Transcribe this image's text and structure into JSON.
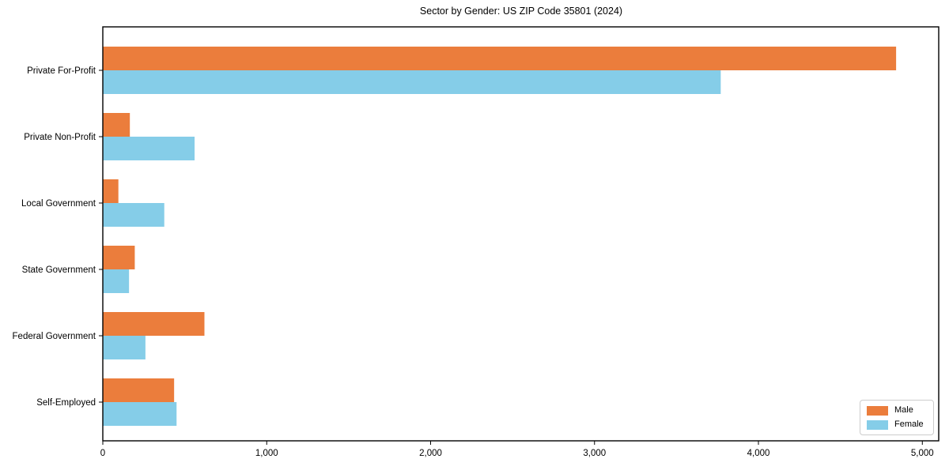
{
  "chart_data": {
    "type": "bar",
    "orientation": "horizontal",
    "title": "Sector by Gender: US ZIP Code 35801 (2024)",
    "categories": [
      "Private For-Profit",
      "Private Non-Profit",
      "Local Government",
      "State Government",
      "Federal Government",
      "Self-Employed"
    ],
    "series": [
      {
        "name": "Male",
        "color": "#EB7D3C",
        "values": [
          4840,
          165,
          95,
          195,
          620,
          435
        ]
      },
      {
        "name": "Female",
        "color": "#85CDE8",
        "values": [
          3770,
          560,
          375,
          160,
          260,
          450
        ]
      }
    ],
    "xlabel": "",
    "ylabel": "",
    "xlim": [
      0,
      5100
    ],
    "xticks": [
      0,
      1000,
      2000,
      3000,
      4000,
      5000
    ],
    "xtick_labels": [
      "0",
      "1,000",
      "2,000",
      "3,000",
      "4,000",
      "5,000"
    ],
    "grid": false,
    "legend_position": "lower right",
    "axis_color": "#000000",
    "text_color": "#000000"
  }
}
